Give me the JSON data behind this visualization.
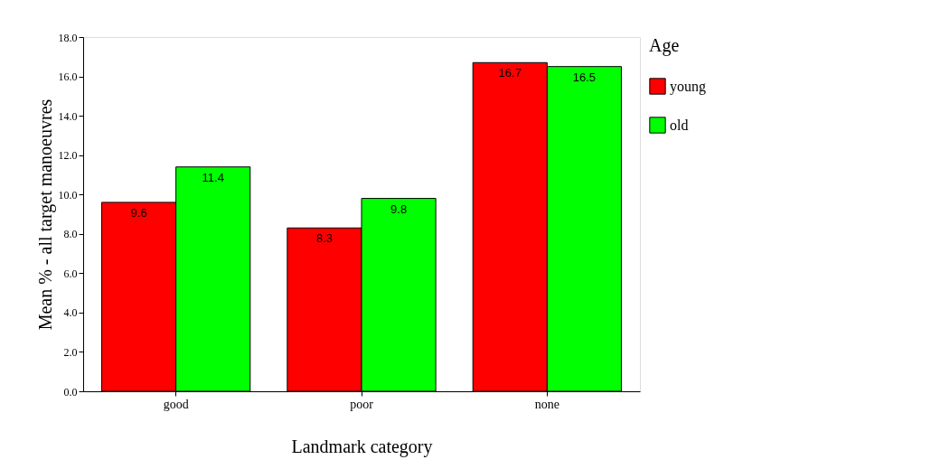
{
  "chart_data": {
    "type": "bar",
    "xlabel": "Landmark category",
    "ylabel": "Mean % - all target manoeuvres",
    "legend_title": "Age",
    "categories": [
      "good",
      "poor",
      "none"
    ],
    "series": [
      {
        "name": "young",
        "color": "#ff0000",
        "values": [
          9.6,
          8.3,
          16.7
        ]
      },
      {
        "name": "old",
        "color": "#00ff00",
        "values": [
          11.4,
          9.8,
          16.5
        ]
      }
    ],
    "ylim": [
      0,
      18
    ],
    "yticks": [
      {
        "value": 0,
        "label": "0.0"
      },
      {
        "value": 2,
        "label": "2.0"
      },
      {
        "value": 4,
        "label": "4.0"
      },
      {
        "value": 6,
        "label": "6.0"
      },
      {
        "value": 8,
        "label": "8.0"
      },
      {
        "value": 10,
        "label": "10.0"
      },
      {
        "value": 12,
        "label": "12.0"
      },
      {
        "value": 14,
        "label": "14.0"
      },
      {
        "value": 16,
        "label": "16.0"
      },
      {
        "value": 18,
        "label": "18.0"
      }
    ],
    "data_labels": true,
    "grid": false,
    "legend": "right"
  }
}
